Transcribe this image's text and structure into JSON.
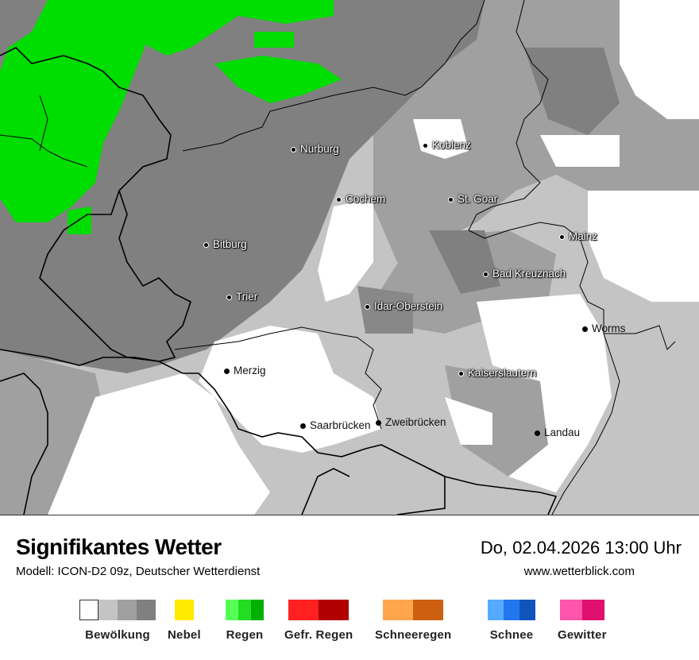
{
  "map": {
    "cities": [
      {
        "name": "Nürburg"
      },
      {
        "name": "Koblenz"
      },
      {
        "name": "Cochem"
      },
      {
        "name": "St. Goar"
      },
      {
        "name": "Bitburg"
      },
      {
        "name": "Mainz"
      },
      {
        "name": "Bad Kreuznach"
      },
      {
        "name": "Trier"
      },
      {
        "name": "Idar-Oberstein"
      },
      {
        "name": "Worms"
      },
      {
        "name": "Merzig"
      },
      {
        "name": "Kaiserslautern"
      },
      {
        "name": "Saarbrücken"
      },
      {
        "name": "Zweibrücken"
      },
      {
        "name": "Landau"
      }
    ]
  },
  "footer": {
    "title": "Signifikantes Wetter",
    "subtitle": "Modell: ICON-D2 09z, Deutscher Wetterdienst",
    "datetime": "Do, 02.04.2026 13:00 Uhr",
    "website": "www.wetterblick.com"
  },
  "legend": [
    {
      "label": "Bewölkung",
      "colors": [
        "#ffffff",
        "#c4c4c4",
        "#a0a0a0",
        "#808080"
      ]
    },
    {
      "label": "Nebel",
      "colors": [
        "#ffeb00"
      ]
    },
    {
      "label": "Regen",
      "colors": [
        "#55ff55",
        "#22dd22",
        "#00b000"
      ]
    },
    {
      "label": "Gefr. Regen",
      "colors": [
        "#ff2020",
        "#b00000"
      ]
    },
    {
      "label": "Schneeregen",
      "colors": [
        "#ffa64d",
        "#cc6010"
      ]
    },
    {
      "label": "Schnee",
      "colors": [
        "#55aaff",
        "#2277ee",
        "#1155bb"
      ]
    },
    {
      "label": "Gewitter",
      "colors": [
        "#ff55aa",
        "#e0106e"
      ]
    }
  ]
}
